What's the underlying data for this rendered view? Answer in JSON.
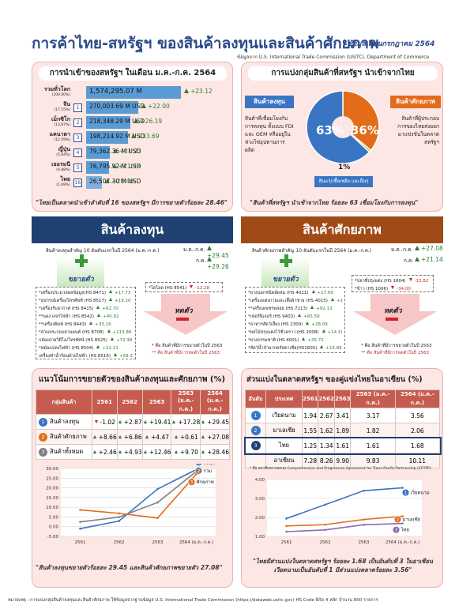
{
  "header": {
    "title": "การค้าไทย-สหรัฐฯ ของสินค้าลงทุนและสินค้าศักยภาพ",
    "date": "ข้อมูลเดือนกรกฎาคม 2564",
    "source": "ข้อมูลจาก U.S. International Trade Commission (USITC), Department of Commerce"
  },
  "imports_panel": {
    "title": "การนำเข้าของสหรัฐฯ ในเดือน ม.ค.-ก.ค. 2564",
    "rows": [
      {
        "rank": "",
        "name": "รวมทั่วโลก",
        "share": "(100.00%)",
        "value": "1,574,295.07 M",
        "growth": "+23.12"
      },
      {
        "rank": "1",
        "name": "จีน",
        "share": "(17.15%)",
        "value": "270,003.69 M USD",
        "growth": "+22.00"
      },
      {
        "rank": "2",
        "name": "เม็กซิโก",
        "share": "(13.87%)",
        "value": "218,348.29 M USD",
        "growth": "+26.19"
      },
      {
        "rank": "3",
        "name": "แคนาดา",
        "share": "(12.59%)",
        "value": "198,214.92 M USD",
        "growth": "+33.69"
      },
      {
        "rank": "4",
        "name": "ญี่ปุ่น",
        "share": "(5.04%)",
        "value": "79,362.36 M USD",
        "growth": "+21.23"
      },
      {
        "rank": "5",
        "name": "เยอรมนี",
        "share": "(4.88%)",
        "value": "76,795.92 M USD",
        "growth": "+21.28"
      },
      {
        "rank": "16",
        "name": "ไทย",
        "share": "(1.69%)",
        "value": "26,507.30 M USD",
        "growth": "+28.46"
      }
    ],
    "bar_fractions": [
      1.0,
      0.55,
      0.47,
      0.44,
      0.25,
      0.24,
      0.17
    ],
    "quote": "\"ไทยเป็นตลาดนำเข้าลำดับที่ 16 ของสหรัฐฯ มีการขยายตัวร้อยละ 28.46\""
  },
  "groups_panel": {
    "title": "การแบ่งกลุ่มสินค้าที่สหรัฐฯ นำเข้าจากไทย",
    "left_label": "สินค้าลงทุน",
    "left_desc": "สินค้าที่เชื่อมโยงกับการลงทุน ทั้งแบบ FDI และ OEM หรืออยู่ในห่วงโซ่อุปทานการผลิต",
    "right_label": "สินค้าศักยภาพ",
    "right_desc": "สินค้าที่ผู้ประกอบการของไทยส่งออกมาแข่งขันในตลาดสหรัฐฯ",
    "pct_invest": "63%",
    "pct_potential": "36%",
    "pct_other": "1%",
    "other_label": "สินแร่/เชื้อเพลิง และอื่นๆ",
    "quote": "\"สินค้าที่สหรัฐฯ นำเข้าจากไทย ร้อยละ 63 เชื่อมโยงกับการลงทุน\""
  },
  "pie_data": [
    {
      "name": "สินค้าลงทุน",
      "value": 63,
      "color": "#3a75c4"
    },
    {
      "name": "สินค้าศักยภาพ",
      "value": 36,
      "color": "#e36c1a"
    },
    {
      "name": "สินแร่/เชื้อเพลิง และอื่นๆ",
      "value": 1,
      "color": "#8cc63f"
    }
  ],
  "invest": {
    "banner": "สินค้าลงทุน",
    "subtitle": "สินค้าลงทุนสำคัญ 10 อันดับแรกในปี 2564 (ม.ค.-ก.ค.)",
    "ytd_label": "ม.ค.-ก.ค.",
    "ytd_growth": "+29.45",
    "jul_label": "ก.ค.",
    "jul_growth": "+29.26",
    "expand_label": "ขยายตัว",
    "shrink_label": "หดตัว",
    "expand_items": [
      {
        "name": "*เครื่องประมวลผลข้อมูล(HS 8471)",
        "growth": "+17.73"
      },
      {
        "name": "*อุปกรณ์เครื่องโทรศัพท์ (HS 8517)",
        "growth": "+19.20"
      },
      {
        "name": "*เครื่องรับอากาศ (HS 8415)",
        "growth": "+62.70"
      },
      {
        "name": "**แผงวงจรไฟฟ้า (HS 8542)",
        "growth": "+40.92"
      },
      {
        "name": "**เครื่องพิมพ์ (HS 8443)",
        "growth": "+33.16"
      },
      {
        "name": "*ส่วนประกอบยานยนต์ (HS 8708)",
        "growth": "+113.86"
      },
      {
        "name": "กล้องถ่ายวิดีโอ/โทรทัศน์ (HS 8525)",
        "growth": "+72.38"
      },
      {
        "name": "*หม้อแปลงไฟฟ้า (HS 8504)",
        "growth": "+22.11"
      },
      {
        "name": "เครื่องทำน้ำร้อนด้วยไฟฟ้า (HS 8516)",
        "growth": "+59.30"
      }
    ],
    "shrink_items": [
      {
        "name": "*ไดโอด (HS 8541)",
        "growth": "-12.28"
      }
    ],
    "note1": "* คือ สินค้าที่มีการขยายตัวในปี 2563",
    "note2": "** คือ สินค้าที่มีการหดตัวในปี 2563"
  },
  "potential": {
    "banner": "สินค้าศักยภาพ",
    "subtitle": "สินค้าศักยภาพสำคัญ 10 อันดับแรกในปี 2564 (ม.ค.-ก.ค.)",
    "ytd_label": "ม.ค.-ก.ค.",
    "ytd_growth": "+27.08",
    "jul_label": "ก.ค.",
    "jul_growth": "+21.14",
    "expand_label": "ขยายตัว",
    "shrink_label": "หดตัว",
    "expand_items": [
      {
        "name": "*ยางนอกชนิดอัดลม (HS 4011)",
        "growth": "+17.69"
      },
      {
        "name": "*เครื่องแต่งกายและเสื้อผ้าชาย (HS 4015)",
        "growth": "+194.65"
      },
      {
        "name": "**เครื่องเพชรพลอย (HS 7113)",
        "growth": "+92.13"
      },
      {
        "name": "*เฟอร์นิเจอร์ (HS 9403)",
        "growth": "+65.59"
      },
      {
        "name": "*อาหารสัตว์เลี้ยง (HS 2309)",
        "growth": "+28.09"
      },
      {
        "name": "*ผลไม้ปรุงแต่งไว้ชั่วคราว (HS 2008)",
        "growth": "+14.16"
      },
      {
        "name": "*ยางธรรมชาติ (HS 4001)",
        "growth": "+35.72"
      },
      {
        "name": "*สัตว์น้ำจำพวกครัสตาเชีย(HS1605)",
        "growth": "+15.86"
      }
    ],
    "shrink_items": [
      {
        "name": "*ปลาที่ปรุงแต่ง (HS 1604)",
        "growth": "-13.82"
      },
      {
        "name": "*ข้าว (HS 1006)",
        "growth": "-34.00"
      }
    ],
    "note1": "* คือ สินค้าที่มีการขยายตัวในปี 2563",
    "note2": "** คือ สินค้าที่มีการหดตัวในปี 2563"
  },
  "trend_panel": {
    "title": "แนวโน้มการขยายตัวของสินค้าลงทุนและศักยภาพ (%)",
    "headers": [
      "กลุ่มสินค้า",
      "2561",
      "2562",
      "2563",
      "2563 (ม.ค.-ก.ค.)",
      "2564 (ม.ค.-ก.ค.)"
    ],
    "rows": [
      {
        "no": "1",
        "name": "สินค้าลงทุน",
        "vals": [
          "-1.02",
          "+2.87",
          "+19.41",
          "+17.28",
          "+29.45"
        ]
      },
      {
        "no": "2",
        "name": "สินค้าศักยภาพ",
        "vals": [
          "+8.66",
          "+6.86",
          "+4.47",
          "+0.61",
          "+27.08"
        ]
      },
      {
        "no": "3",
        "name": "สินค้าทั้งหมด",
        "vals": [
          "+2.46",
          "+4.93",
          "+12.46",
          "+9.70",
          "+28.46"
        ]
      }
    ],
    "legend_labels": [
      "ลงทุน",
      "รวม",
      "ศักยภาพ"
    ],
    "quote": "\"สินค้าลงทุนขยายตัวร้อยละ 29.45 และสินค้าศักยภาพขยายตัว 27.08\""
  },
  "share_panel": {
    "title": "ส่วนแบ่งในตลาดสหรัฐฯ ของคู่แข่งไทยในอาเซียน (%)",
    "headers": [
      "อันดับ",
      "ประเทศ",
      "2561",
      "2562",
      "2563",
      "2563 (ม.ค.-ก.ค.)",
      "2564 (ม.ค.-ก.ค.)"
    ],
    "rows": [
      {
        "rank": "1",
        "country": "เวียดนาม",
        "vals": [
          "1.94",
          "2.67",
          "3.41",
          "3.17",
          "3.56"
        ]
      },
      {
        "rank": "2",
        "country": "มาเลเซีย",
        "vals": [
          "1.55",
          "1.62",
          "1.89",
          "1.82",
          "2.06"
        ]
      },
      {
        "rank": "3",
        "country": "ไทย",
        "vals": [
          "1.25",
          "1.34",
          "1.61",
          "1.61",
          "1.68"
        ]
      },
      {
        "rank": "",
        "country": "อาเซียน",
        "vals": [
          "7.28",
          "8.26",
          "9.90",
          "9.83",
          "10.11"
        ]
      }
    ],
    "note": "* คือ สมาชิกความตกลง Comprehensive and Progressive Agreement for Trans-Pacific Partnership (CPTPP)",
    "legend_labels": [
      "เวียดนาม",
      "มาเลเซีย",
      "ไทย"
    ],
    "quote": "\"ไทยมีส่วนแบ่งในตลาดสหรัฐฯ ร้อยละ 1.68 เป็นอันดับที่ 3 ในอาเซียน เวียดนามเป็นอันดับที่ 1 มีส่วนแบ่งตลาดร้อยละ 3.56\""
  },
  "footer": "หมายเหตุ : การแบ่งกลุ่มสินค้าลงทุนและสินค้าศักยภาพ ใช้ข้อมูลจากฐานข้อมูล U.S. International Trade Commission (https://dataweb.usitc.gov) HS Code พิกัด 4 หลัก จำนวน 800 รายการ",
  "chart_data": [
    {
      "type": "line",
      "x": [
        "2561",
        "2562",
        "2563",
        "2564 (ม.ค.-ก.ค.)"
      ],
      "ylim": [
        -5,
        30
      ],
      "yticks": [
        "-5.00",
        "0.00",
        "5.00",
        "10.00",
        "15.00",
        "20.00",
        "25.00",
        "30.00"
      ],
      "series": [
        {
          "name": "ลงทุน",
          "values": [
            -1.02,
            2.87,
            19.41,
            29.45
          ],
          "color": "#3a75c4"
        },
        {
          "name": "รวม",
          "values": [
            2.46,
            4.93,
            12.46,
            28.46
          ],
          "color": "#7f7f7f"
        },
        {
          "name": "ศักยภาพ",
          "values": [
            8.66,
            6.86,
            4.47,
            27.08
          ],
          "color": "#e36c1a"
        }
      ]
    },
    {
      "type": "line",
      "x": [
        "2561",
        "2562",
        "2563",
        "2564 (ม.ค.-ก.ค.)"
      ],
      "ylim": [
        1,
        4
      ],
      "yticks": [
        "1.00",
        "2.00",
        "3.00",
        "4.00"
      ],
      "series": [
        {
          "name": "เวียดนาม",
          "values": [
            1.94,
            2.67,
            3.41,
            3.56
          ],
          "color": "#3a75c4"
        },
        {
          "name": "มาเลเซีย",
          "values": [
            1.55,
            1.62,
            1.89,
            2.06
          ],
          "color": "#e36c1a"
        },
        {
          "name": "ไทย",
          "values": [
            1.25,
            1.34,
            1.61,
            1.68
          ],
          "color": "#8b6bb5"
        }
      ]
    }
  ]
}
